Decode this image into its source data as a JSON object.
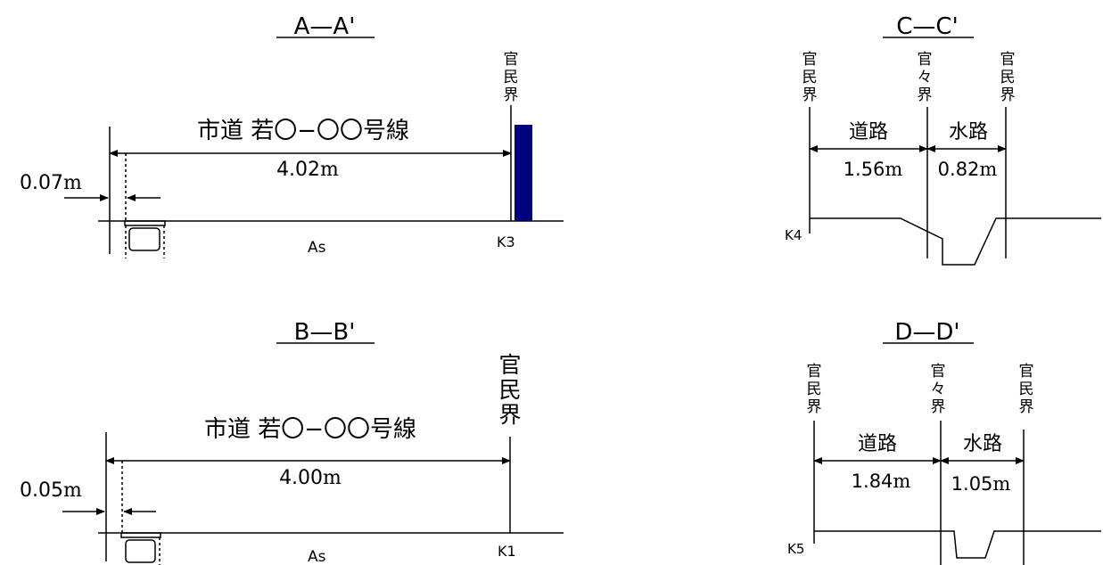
{
  "sections": {
    "aa": {
      "title": "A—A'",
      "road_name": "市道 若〇−〇〇号線",
      "width": "4.02",
      "offset": "0.07",
      "surface": "As",
      "point": "K3",
      "boundary": [
        "官",
        "民",
        "界"
      ]
    },
    "bb": {
      "title": "B—B'",
      "road_name": "市道 若〇−〇〇号線",
      "width": "4.00",
      "offset": "0.05",
      "surface": "As",
      "point": "K1",
      "boundary": [
        "官",
        "民",
        "界"
      ]
    },
    "cc": {
      "title": "C—C'",
      "road_label": "道路",
      "water_label": "水路",
      "road_width": "1.56",
      "water_width": "0.82",
      "point": "K4",
      "left_boundary": [
        "官",
        "民",
        "界"
      ],
      "mid_boundary": [
        "官",
        "々",
        "界"
      ],
      "right_boundary": [
        "官",
        "民",
        "界"
      ]
    },
    "dd": {
      "title": "D—D'",
      "road_label": "道路",
      "water_label": "水路",
      "road_width": "1.84",
      "water_width": "1.05",
      "point": "K5",
      "left_boundary": [
        "官",
        "民",
        "界"
      ],
      "mid_boundary": [
        "官",
        "々",
        "界"
      ],
      "right_boundary": [
        "官",
        "民",
        "界"
      ]
    }
  },
  "unit": "m",
  "colors": {
    "line": "#000000",
    "wall": "#00007f"
  }
}
